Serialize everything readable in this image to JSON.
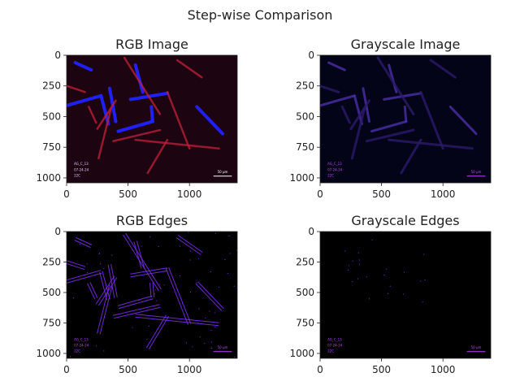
{
  "figure_title": "Step-wise Comparison",
  "chart_data": [
    {
      "type": "image",
      "title": "RGB Image",
      "xticks": [
        0,
        500,
        1000
      ],
      "yticks": [
        0,
        250,
        500,
        750,
        1000
      ],
      "xlim": [
        0,
        1389
      ],
      "ylim": [
        1040,
        0
      ],
      "style": "rgb",
      "overlay_text": [
        "AG_C_13",
        "07-24-24",
        "22C"
      ],
      "scale_bar_label": "50 µm"
    },
    {
      "type": "image",
      "title": "Grayscale Image",
      "xticks": [
        0,
        500,
        1000
      ],
      "yticks": [
        0,
        250,
        500,
        750,
        1000
      ],
      "xlim": [
        0,
        1389
      ],
      "ylim": [
        1040,
        0
      ],
      "style": "gray",
      "overlay_text": [
        "AG_C_13",
        "07-24-24",
        "22C"
      ],
      "scale_bar_label": "50 µm"
    },
    {
      "type": "image",
      "title": "RGB Edges",
      "xticks": [
        0,
        500,
        1000
      ],
      "yticks": [
        0,
        250,
        500,
        750,
        1000
      ],
      "xlim": [
        0,
        1389
      ],
      "ylim": [
        1040,
        0
      ],
      "style": "edges",
      "overlay_text": [
        "AG_C_13",
        "07-24-24",
        "22C"
      ],
      "scale_bar_label": "50 µm"
    },
    {
      "type": "image",
      "title": "Grayscale Edges",
      "xticks": [
        0,
        500,
        1000
      ],
      "yticks": [
        0,
        250,
        500,
        750,
        1000
      ],
      "xlim": [
        0,
        1389
      ],
      "ylim": [
        1040,
        0
      ],
      "style": "sparse",
      "overlay_text": [
        "AG_C_13",
        "07-24-24",
        "22C"
      ],
      "scale_bar_label": "50 µm"
    }
  ],
  "crystals": [
    {
      "x1": 0,
      "y1": 410,
      "x2": 280,
      "y2": 330,
      "c": "blue"
    },
    {
      "x1": 280,
      "y1": 330,
      "x2": 340,
      "y2": 560,
      "c": "blue"
    },
    {
      "x1": 350,
      "y1": 270,
      "x2": 400,
      "y2": 540,
      "c": "blue"
    },
    {
      "x1": 420,
      "y1": 620,
      "x2": 700,
      "y2": 540,
      "c": "blue"
    },
    {
      "x1": 700,
      "y1": 540,
      "x2": 690,
      "y2": 420,
      "c": "blue"
    },
    {
      "x1": 1060,
      "y1": 420,
      "x2": 1270,
      "y2": 640,
      "c": "blue"
    },
    {
      "x1": 520,
      "y1": 360,
      "x2": 820,
      "y2": 310,
      "c": "blue"
    },
    {
      "x1": 560,
      "y1": 80,
      "x2": 620,
      "y2": 300,
      "c": "blue"
    },
    {
      "x1": 70,
      "y1": 60,
      "x2": 200,
      "y2": 120,
      "c": "blue"
    },
    {
      "x1": 180,
      "y1": 420,
      "x2": 240,
      "y2": 550,
      "c": "red"
    },
    {
      "x1": 260,
      "y1": 840,
      "x2": 360,
      "y2": 440,
      "c": "red"
    },
    {
      "x1": 250,
      "y1": 600,
      "x2": 400,
      "y2": 370,
      "c": "red"
    },
    {
      "x1": 470,
      "y1": 20,
      "x2": 760,
      "y2": 480,
      "c": "red"
    },
    {
      "x1": 560,
      "y1": 690,
      "x2": 1240,
      "y2": 760,
      "c": "red"
    },
    {
      "x1": 660,
      "y1": 960,
      "x2": 820,
      "y2": 690,
      "c": "red"
    },
    {
      "x1": 820,
      "y1": 300,
      "x2": 1000,
      "y2": 760,
      "c": "red"
    },
    {
      "x1": 380,
      "y1": 700,
      "x2": 760,
      "y2": 610,
      "c": "red"
    },
    {
      "x1": 900,
      "y1": 40,
      "x2": 1100,
      "y2": 180,
      "c": "red"
    },
    {
      "x1": 0,
      "y1": 250,
      "x2": 150,
      "y2": 300,
      "c": "red"
    }
  ],
  "colors": {
    "rgb_bg": "#1c0410",
    "gray_bg": "#040418",
    "edge_bg": "#000000",
    "blue": "#2222ff",
    "red": "#c0203a",
    "edge_line": "#7b2cf0",
    "overlay_text": "#c040ff",
    "scale_bar": "#c040ff"
  }
}
